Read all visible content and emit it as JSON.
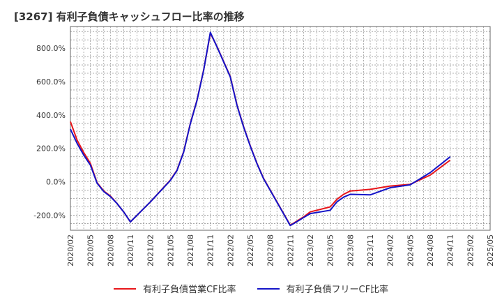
{
  "chart_data": {
    "type": "line",
    "title": "[3267]  有利子負債キャッシュフロー比率の推移",
    "xlabel": "",
    "ylabel": "",
    "x_ticks": [
      "2020/02",
      "2020/05",
      "2020/08",
      "2020/11",
      "2021/02",
      "2021/05",
      "2021/08",
      "2021/11",
      "2022/02",
      "2022/05",
      "2022/08",
      "2022/11",
      "2023/02",
      "2023/05",
      "2023/08",
      "2023/11",
      "2024/02",
      "2024/05",
      "2024/08",
      "2024/11",
      "2025/02",
      "2025/05"
    ],
    "y_ticks": [
      "-200.0%",
      "0.0%",
      "200.0%",
      "400.0%",
      "600.0%",
      "800.0%"
    ],
    "y_tick_values": [
      -200,
      0,
      200,
      400,
      600,
      800
    ],
    "ylim": [
      -290,
      930
    ],
    "grid": true,
    "legend_position": "bottom",
    "series": [
      {
        "name": "有利子負債営業CF比率",
        "color": "#e8161a",
        "values": [
          {
            "x": "2020/02",
            "y": 360
          },
          {
            "x": "2020/03",
            "y": 250
          },
          {
            "x": "2020/04",
            "y": 175
          },
          {
            "x": "2020/05",
            "y": 110
          },
          {
            "x": "2020/06",
            "y": -5
          },
          {
            "x": "2020/07",
            "y": -55
          },
          {
            "x": "2020/08",
            "y": -85
          },
          {
            "x": "2020/09",
            "y": -130
          },
          {
            "x": "2020/10",
            "y": -180
          },
          {
            "x": "2020/11",
            "y": -240
          },
          {
            "x": "2021/02",
            "y": -120
          },
          {
            "x": "2021/05",
            "y": 10
          },
          {
            "x": "2021/06",
            "y": 70
          },
          {
            "x": "2021/07",
            "y": 180
          },
          {
            "x": "2021/08",
            "y": 350
          },
          {
            "x": "2021/09",
            "y": 490
          },
          {
            "x": "2021/10",
            "y": 670
          },
          {
            "x": "2021/11",
            "y": 890
          },
          {
            "x": "2021/12",
            "y": 810
          },
          {
            "x": "2022/01",
            "y": 720
          },
          {
            "x": "2022/02",
            "y": 630
          },
          {
            "x": "2022/03",
            "y": 460
          },
          {
            "x": "2022/04",
            "y": 330
          },
          {
            "x": "2022/05",
            "y": 215
          },
          {
            "x": "2022/06",
            "y": 110
          },
          {
            "x": "2022/07",
            "y": 20
          },
          {
            "x": "2022/08",
            "y": -50
          },
          {
            "x": "2022/09",
            "y": -120
          },
          {
            "x": "2022/10",
            "y": -190
          },
          {
            "x": "2022/11",
            "y": -260
          },
          {
            "x": "2022/12",
            "y": -235
          },
          {
            "x": "2023/01",
            "y": -210
          },
          {
            "x": "2023/02",
            "y": -180
          },
          {
            "x": "2023/05",
            "y": -150
          },
          {
            "x": "2023/06",
            "y": -105
          },
          {
            "x": "2023/07",
            "y": -75
          },
          {
            "x": "2023/08",
            "y": -55
          },
          {
            "x": "2023/11",
            "y": -45
          },
          {
            "x": "2024/02",
            "y": -25
          },
          {
            "x": "2024/05",
            "y": -15
          },
          {
            "x": "2024/08",
            "y": 40
          },
          {
            "x": "2024/11",
            "y": 130
          }
        ]
      },
      {
        "name": "有利子負債フリーCF比率",
        "color": "#1414c8",
        "values": [
          {
            "x": "2020/02",
            "y": 315
          },
          {
            "x": "2020/03",
            "y": 230
          },
          {
            "x": "2020/04",
            "y": 160
          },
          {
            "x": "2020/05",
            "y": 100
          },
          {
            "x": "2020/06",
            "y": -8
          },
          {
            "x": "2020/07",
            "y": -58
          },
          {
            "x": "2020/08",
            "y": -88
          },
          {
            "x": "2020/09",
            "y": -130
          },
          {
            "x": "2020/10",
            "y": -180
          },
          {
            "x": "2020/11",
            "y": -240
          },
          {
            "x": "2021/02",
            "y": -120
          },
          {
            "x": "2021/05",
            "y": 8
          },
          {
            "x": "2021/06",
            "y": 68
          },
          {
            "x": "2021/07",
            "y": 178
          },
          {
            "x": "2021/08",
            "y": 348
          },
          {
            "x": "2021/09",
            "y": 488
          },
          {
            "x": "2021/10",
            "y": 668
          },
          {
            "x": "2021/11",
            "y": 895
          },
          {
            "x": "2021/12",
            "y": 808
          },
          {
            "x": "2022/01",
            "y": 718
          },
          {
            "x": "2022/02",
            "y": 628
          },
          {
            "x": "2022/03",
            "y": 458
          },
          {
            "x": "2022/04",
            "y": 328
          },
          {
            "x": "2022/05",
            "y": 213
          },
          {
            "x": "2022/06",
            "y": 108
          },
          {
            "x": "2022/07",
            "y": 18
          },
          {
            "x": "2022/08",
            "y": -52
          },
          {
            "x": "2022/09",
            "y": -122
          },
          {
            "x": "2022/10",
            "y": -192
          },
          {
            "x": "2022/11",
            "y": -262
          },
          {
            "x": "2022/12",
            "y": -238
          },
          {
            "x": "2023/01",
            "y": -214
          },
          {
            "x": "2023/02",
            "y": -190
          },
          {
            "x": "2023/05",
            "y": -170
          },
          {
            "x": "2023/06",
            "y": -120
          },
          {
            "x": "2023/07",
            "y": -92
          },
          {
            "x": "2023/08",
            "y": -75
          },
          {
            "x": "2023/11",
            "y": -78
          },
          {
            "x": "2024/02",
            "y": -35
          },
          {
            "x": "2024/05",
            "y": -18
          },
          {
            "x": "2024/08",
            "y": 55
          },
          {
            "x": "2024/11",
            "y": 150
          }
        ]
      }
    ]
  }
}
